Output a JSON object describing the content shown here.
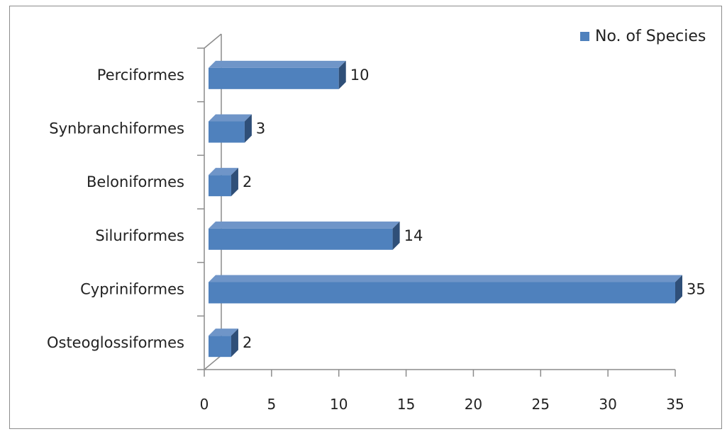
{
  "chart_data": {
    "type": "bar",
    "orientation": "horizontal",
    "style": "3d",
    "categories": [
      "Osteoglossiformes",
      "Cypriniformes",
      "Siluriformes",
      "Beloniformes",
      "Synbranchiformes",
      "Perciformes"
    ],
    "series": [
      {
        "name": "No. of Species",
        "values": [
          2,
          35,
          14,
          2,
          3,
          10
        ]
      }
    ],
    "data_labels": [
      "2",
      "35",
      "14",
      "2",
      "3",
      "10"
    ],
    "xlim": [
      0,
      35
    ],
    "xticks": [
      "0",
      "5",
      "10",
      "15",
      "20",
      "25",
      "30",
      "35"
    ],
    "title": "",
    "xlabel": "",
    "ylabel": "",
    "legend": {
      "position": "top-right",
      "label": "No. of Species"
    },
    "grid": false,
    "colors": {
      "bar_front": "#4f81bd",
      "bar_top": "#6f95c8",
      "bar_side": "#2f4f78",
      "axis": "#8c8c8c"
    }
  }
}
